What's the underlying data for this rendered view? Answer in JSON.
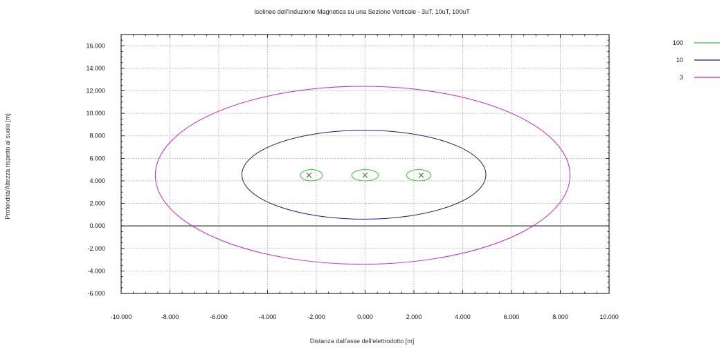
{
  "chart_data": {
    "type": "line",
    "title": "Isolinee dell'Induzione Magnetica su una Sezione Verticale - 3uT, 10uT, 100uT",
    "xlabel": "Distanza dall'asse dell'elettrodotto [m]",
    "ylabel": "Profondità/Altezza rispetto al suolo [m]",
    "xlim": [
      -10,
      10
    ],
    "ylim": [
      -6,
      17
    ],
    "xticks": [
      -10,
      -8,
      -6,
      -4,
      -2,
      0,
      2,
      4,
      6,
      8,
      10
    ],
    "xtick_labels": [
      "-10.000",
      "-8.000",
      "-6.000",
      "-4.000",
      "-2.000",
      "0.000",
      "2.000",
      "4.000",
      "6.000",
      "8.000",
      "10.000"
    ],
    "yticks": [
      -6,
      -4,
      -2,
      0,
      2,
      4,
      6,
      8,
      10,
      12,
      14,
      16
    ],
    "ytick_labels": [
      "-6.000",
      "-4.000",
      "-2.000",
      "0.000",
      "2.000",
      "4.000",
      "6.000",
      "8.000",
      "10.000",
      "12.000",
      "14.000",
      "16.000"
    ],
    "grid": true,
    "legend_position": "right",
    "ground_line_y": 0,
    "conductors": [
      {
        "x": -2.3,
        "y": 4.5
      },
      {
        "x": 0.0,
        "y": 4.5
      },
      {
        "x": 2.3,
        "y": 4.5
      }
    ],
    "series": [
      {
        "name": "100",
        "color": "#22cc22",
        "contours": [
          {
            "center": [
              -2.2,
              4.5
            ],
            "rx": 0.45,
            "ry": 0.5
          },
          {
            "center": [
              0.0,
              4.5
            ],
            "rx": 0.55,
            "ry": 0.5
          },
          {
            "center": [
              2.2,
              4.5
            ],
            "rx": 0.5,
            "ry": 0.5
          }
        ]
      },
      {
        "name": "10",
        "color": "#1a1a80",
        "contours": [
          {
            "center": [
              -0.05,
              4.55
            ],
            "rx": 5.0,
            "ry": 3.95
          }
        ]
      },
      {
        "name": "3",
        "color": "#cc22cc",
        "contours": [
          {
            "center": [
              -0.1,
              4.5
            ],
            "rx": 8.5,
            "ry": 7.9
          }
        ]
      }
    ]
  }
}
